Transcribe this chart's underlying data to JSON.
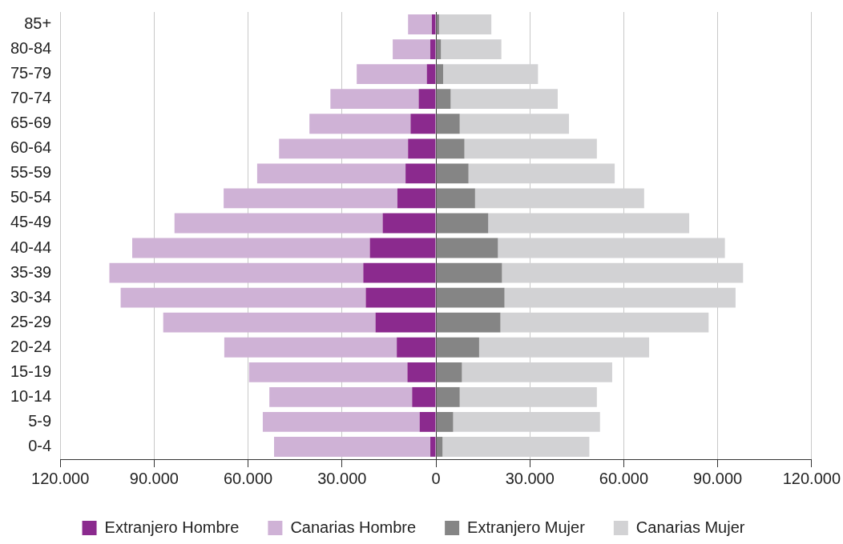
{
  "chart_data": {
    "type": "bar",
    "orientation": "horizontal",
    "stacked": true,
    "categories": [
      "85+",
      "80-84",
      "75-79",
      "70-74",
      "65-69",
      "60-64",
      "55-59",
      "50-54",
      "45-49",
      "40-44",
      "35-39",
      "30-34",
      "25-29",
      "20-24",
      "15-19",
      "10-14",
      "5-9",
      "0-4"
    ],
    "series": [
      {
        "name": "Extranjero Hombre",
        "color": "#8b2a8e",
        "values": [
          -1300,
          -1800,
          -2900,
          -5500,
          -8100,
          -8900,
          -9700,
          -12300,
          -17000,
          -21100,
          -23200,
          -22400,
          -19300,
          -12500,
          -9100,
          -7600,
          -5200,
          -1800
        ]
      },
      {
        "name": "Canarias Hombre",
        "color": "#cfb2d6",
        "values": [
          -7600,
          -12000,
          -22400,
          -28200,
          -32300,
          -41200,
          -47400,
          -55500,
          -66500,
          -75900,
          -81100,
          -78300,
          -67800,
          -55100,
          -50600,
          -45600,
          -50100,
          -49900
        ]
      },
      {
        "name": "Extranjero Mujer",
        "color": "#858585",
        "values": [
          1000,
          1600,
          2300,
          4700,
          7600,
          9100,
          10400,
          12500,
          16700,
          19800,
          21100,
          21900,
          20600,
          13800,
          8300,
          7600,
          5500,
          2100
        ]
      },
      {
        "name": "Canarias Mujer",
        "color": "#d2d2d4",
        "values": [
          16700,
          19300,
          30300,
          34200,
          34900,
          42300,
          46700,
          54000,
          64200,
          72500,
          77000,
          73800,
          66500,
          54300,
          48000,
          43800,
          46900,
          46900
        ]
      }
    ],
    "xlim": [
      -120000,
      120000
    ],
    "xticks": [
      {
        "value": -120000,
        "label": "120.000"
      },
      {
        "value": -90000,
        "label": "90.000"
      },
      {
        "value": -60000,
        "label": "60.000"
      },
      {
        "value": -30000,
        "label": "30.000"
      },
      0,
      {
        "value": 30000,
        "label": "30.000"
      },
      {
        "value": 60000,
        "label": "60.000"
      },
      {
        "value": 90000,
        "label": "90.000"
      },
      {
        "value": 120000,
        "label": "120.000"
      }
    ],
    "grid": "x",
    "legend": "bottom"
  }
}
